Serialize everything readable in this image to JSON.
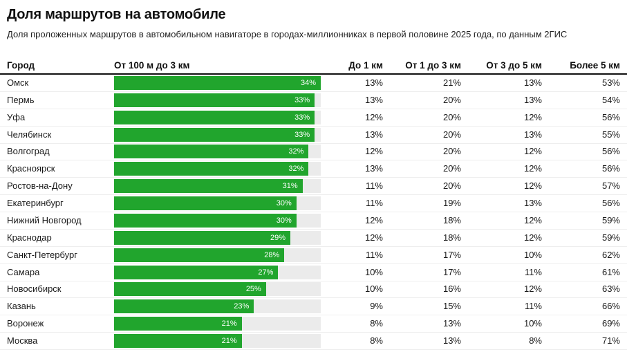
{
  "title": "Доля маршрутов на автомобиле",
  "subtitle": "Доля проложенных маршрутов в автомобильном навигаторе в городах-миллионниках в первой половине 2025 года, по данным 2ГИС",
  "colors": {
    "bar": "#21a52d",
    "bar_track": "#ebebeb",
    "divider": "#eeeeee",
    "header_rule": "#111111",
    "bar_label": "#ffffff"
  },
  "chart_data": {
    "type": "bar",
    "title": "Доля маршрутов на автомобиле",
    "subtitle": "Доля проложенных маршрутов в автомобильном навигаторе в городах-миллионниках в первой половине 2025 года, по данным 2ГИС",
    "unit": "%",
    "bar_axis_max": 34,
    "legend_position": "none",
    "grid": false,
    "columns": [
      "Город",
      "От 100 м до 3 км",
      "До 1 км",
      "От 1 до 3 км",
      "От 3 до 5 км",
      "Более 5 км"
    ],
    "rows": [
      {
        "city": "Омск",
        "from_100m_to_3km": 34,
        "to_1km": 13,
        "from_1_to_3km": 21,
        "from_3_to_5km": 13,
        "more_than_5km": 53
      },
      {
        "city": "Пермь",
        "from_100m_to_3km": 33,
        "to_1km": 13,
        "from_1_to_3km": 20,
        "from_3_to_5km": 13,
        "more_than_5km": 54
      },
      {
        "city": "Уфа",
        "from_100m_to_3km": 33,
        "to_1km": 12,
        "from_1_to_3km": 20,
        "from_3_to_5km": 12,
        "more_than_5km": 56
      },
      {
        "city": "Челябинск",
        "from_100m_to_3km": 33,
        "to_1km": 13,
        "from_1_to_3km": 20,
        "from_3_to_5km": 13,
        "more_than_5km": 55
      },
      {
        "city": "Волгоград",
        "from_100m_to_3km": 32,
        "to_1km": 12,
        "from_1_to_3km": 20,
        "from_3_to_5km": 12,
        "more_than_5km": 56
      },
      {
        "city": "Красноярск",
        "from_100m_to_3km": 32,
        "to_1km": 13,
        "from_1_to_3km": 20,
        "from_3_to_5km": 12,
        "more_than_5km": 56
      },
      {
        "city": "Ростов-на-Дону",
        "from_100m_to_3km": 31,
        "to_1km": 11,
        "from_1_to_3km": 20,
        "from_3_to_5km": 12,
        "more_than_5km": 57
      },
      {
        "city": "Екатеринбург",
        "from_100m_to_3km": 30,
        "to_1km": 11,
        "from_1_to_3km": 19,
        "from_3_to_5km": 13,
        "more_than_5km": 56
      },
      {
        "city": "Нижний Новгород",
        "from_100m_to_3km": 30,
        "to_1km": 12,
        "from_1_to_3km": 18,
        "from_3_to_5km": 12,
        "more_than_5km": 59
      },
      {
        "city": "Краснодар",
        "from_100m_to_3km": 29,
        "to_1km": 12,
        "from_1_to_3km": 18,
        "from_3_to_5km": 12,
        "more_than_5km": 59
      },
      {
        "city": "Санкт-Петербург",
        "from_100m_to_3km": 28,
        "to_1km": 11,
        "from_1_to_3km": 17,
        "from_3_to_5km": 10,
        "more_than_5km": 62
      },
      {
        "city": "Самара",
        "from_100m_to_3km": 27,
        "to_1km": 10,
        "from_1_to_3km": 17,
        "from_3_to_5km": 11,
        "more_than_5km": 61
      },
      {
        "city": "Новосибирск",
        "from_100m_to_3km": 25,
        "to_1km": 10,
        "from_1_to_3km": 16,
        "from_3_to_5km": 12,
        "more_than_5km": 63
      },
      {
        "city": "Казань",
        "from_100m_to_3km": 23,
        "to_1km": 9,
        "from_1_to_3km": 15,
        "from_3_to_5km": 11,
        "more_than_5km": 66
      },
      {
        "city": "Воронеж",
        "from_100m_to_3km": 21,
        "to_1km": 8,
        "from_1_to_3km": 13,
        "from_3_to_5km": 10,
        "more_than_5km": 69
      },
      {
        "city": "Москва",
        "from_100m_to_3km": 21,
        "to_1km": 8,
        "from_1_to_3km": 13,
        "from_3_to_5km": 8,
        "more_than_5km": 71
      }
    ]
  }
}
